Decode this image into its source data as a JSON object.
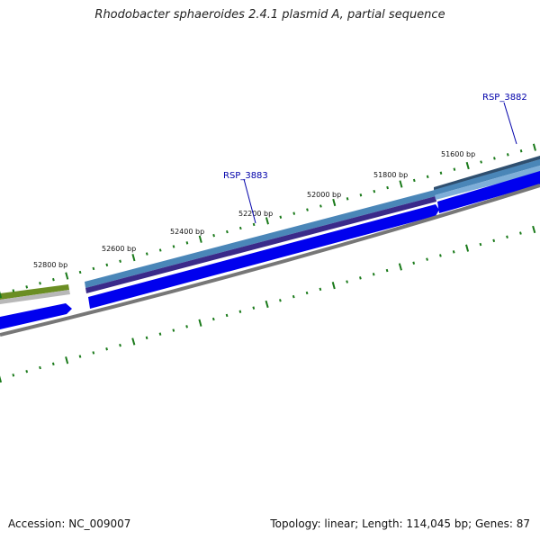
{
  "title": "Rhodobacter sphaeroides 2.4.1 plasmid A, partial sequence",
  "footer": {
    "accession": "Accession: NC_009007",
    "summary": "Topology: linear; Length: 114,045 bp; Genes: 87"
  },
  "colors": {
    "tick": "#1a7a1a",
    "gene_label": "#0000aa",
    "cds_blue": "#0000ee",
    "gene_steel": "#4a86b8",
    "gene_dark": "#3a2a8a",
    "olive": "#6b8e23",
    "backbone": "#777777"
  },
  "scale": {
    "tick_labels": [
      {
        "text": "51600 bp",
        "pos": 51600
      },
      {
        "text": "51800 bp",
        "pos": 51800
      },
      {
        "text": "52000 bp",
        "pos": 52000
      },
      {
        "text": "52200 bp",
        "pos": 52200
      },
      {
        "text": "52400 bp",
        "pos": 52400
      },
      {
        "text": "52600 bp",
        "pos": 52600
      },
      {
        "text": "52800 bp",
        "pos": 52800
      }
    ]
  },
  "genes": [
    {
      "label": "RSP_3882"
    },
    {
      "label": "RSP_3883"
    }
  ]
}
